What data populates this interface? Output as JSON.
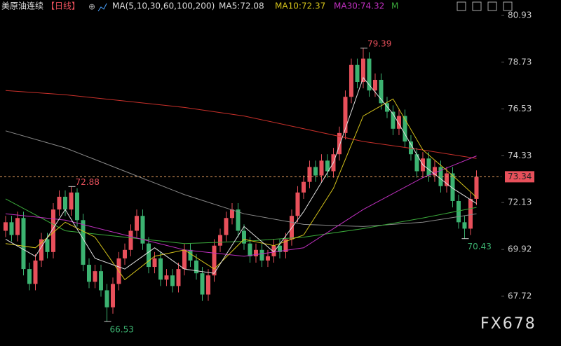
{
  "chart_data": {
    "type": "candlestick",
    "header": [
      "美原油连续",
      "【日线】",
      "MA(5,10,30,60,100,200)",
      "MA5:72.08",
      "MA10:72.37",
      "MA30:74.32",
      "M"
    ],
    "header_colors": [
      "#dddddd",
      "#e8505b",
      "#dddddd",
      "#dddddd",
      "#d4c21a",
      "#c030c0",
      "#3aa83a"
    ],
    "watermark": "FX678",
    "up_color": "#e8505b",
    "down_color": "#3cb371",
    "ylim": [
      66.17,
      81.26
    ],
    "xlim": [
      -0.94,
      83.18
    ],
    "yticks": [
      80.93,
      78.73,
      76.53,
      74.33,
      72.13,
      69.92,
      67.72
    ],
    "last_price": 73.34,
    "high_labels": [
      79.39,
      72.88
    ],
    "low_labels": [
      66.53,
      70.43
    ],
    "open": [
      70.8,
      71.2,
      70.6,
      71.4,
      69.0,
      68.3,
      69.4,
      70.4,
      69.8,
      71.8,
      72.4,
      71.8,
      72.6,
      71.3,
      69.2,
      68.4,
      68.9,
      68.0,
      67.2,
      68.3,
      69.5,
      69.9,
      70.8,
      71.5,
      70.2,
      69.1,
      69.5,
      68.5,
      68.7,
      68.2,
      69.0,
      69.9,
      69.4,
      68.8,
      67.8,
      68.7,
      70.1,
      70.6,
      71.4,
      71.8,
      70.8,
      70.2,
      69.6,
      69.9,
      69.4,
      69.6,
      70.1,
      69.8,
      70.4,
      71.5,
      72.6,
      73.1,
      73.8,
      73.4,
      74.1,
      73.6,
      74.4,
      75.4,
      77.1,
      78.6,
      77.8,
      78.9,
      77.4,
      77.9,
      76.8,
      76.4,
      75.6,
      76.2,
      75.0,
      74.4,
      73.6,
      74.2,
      73.4,
      73.8,
      72.9,
      73.5,
      72.2,
      71.2,
      70.9,
      72.3
    ],
    "high": [
      71.5,
      71.5,
      71.7,
      71.7,
      69.3,
      69.7,
      70.7,
      70.7,
      72.1,
      72.7,
      72.7,
      72.88,
      72.8,
      71.6,
      69.5,
      69.2,
      69.2,
      68.3,
      68.6,
      69.8,
      70.2,
      71.1,
      71.8,
      71.8,
      70.5,
      69.8,
      69.8,
      69.0,
      69.0,
      69.3,
      70.2,
      70.2,
      69.7,
      69.1,
      69.0,
      70.4,
      70.9,
      71.7,
      72.1,
      72.1,
      71.1,
      70.5,
      70.2,
      70.2,
      69.9,
      70.4,
      70.4,
      70.7,
      71.8,
      72.9,
      73.4,
      74.1,
      74.1,
      74.4,
      74.4,
      74.7,
      75.7,
      77.4,
      78.9,
      78.9,
      79.39,
      79.2,
      78.2,
      78.2,
      77.1,
      76.7,
      76.5,
      76.5,
      75.3,
      74.7,
      74.5,
      74.5,
      74.1,
      74.1,
      73.8,
      73.8,
      72.5,
      71.5,
      72.6,
      73.64
    ],
    "low": [
      70.5,
      70.3,
      70.3,
      68.7,
      68.0,
      68.0,
      69.1,
      69.5,
      69.5,
      71.5,
      71.5,
      71.5,
      71.0,
      68.9,
      68.1,
      68.1,
      67.7,
      66.53,
      66.9,
      68.0,
      69.2,
      69.6,
      70.5,
      69.9,
      68.8,
      68.8,
      68.2,
      68.2,
      67.9,
      67.9,
      68.7,
      69.1,
      68.5,
      67.5,
      67.5,
      68.4,
      69.8,
      70.3,
      71.1,
      70.5,
      69.9,
      69.3,
      69.3,
      69.1,
      69.1,
      69.3,
      69.5,
      69.5,
      70.1,
      71.2,
      72.3,
      72.8,
      73.1,
      73.1,
      73.3,
      73.3,
      74.1,
      75.1,
      76.8,
      77.5,
      77.5,
      77.1,
      77.1,
      76.5,
      76.1,
      75.3,
      75.3,
      74.7,
      74.1,
      73.3,
      73.3,
      73.1,
      73.1,
      72.6,
      72.6,
      71.9,
      70.9,
      70.43,
      70.6,
      72.0
    ],
    "close": [
      71.2,
      70.6,
      71.4,
      69.0,
      68.3,
      69.4,
      70.4,
      69.8,
      71.8,
      72.4,
      71.8,
      72.6,
      71.3,
      69.2,
      68.4,
      68.9,
      68.0,
      67.2,
      68.3,
      69.5,
      69.9,
      70.8,
      71.5,
      70.2,
      69.1,
      69.5,
      68.5,
      68.7,
      68.2,
      69.0,
      69.9,
      69.4,
      68.8,
      67.8,
      68.7,
      70.1,
      70.6,
      71.4,
      71.8,
      70.8,
      70.2,
      69.6,
      69.9,
      69.4,
      69.6,
      70.1,
      69.8,
      70.4,
      71.5,
      72.6,
      73.1,
      73.8,
      73.4,
      74.1,
      73.6,
      74.4,
      75.4,
      77.1,
      78.6,
      77.8,
      78.9,
      77.4,
      77.9,
      76.8,
      76.4,
      75.6,
      76.2,
      75.0,
      74.4,
      73.6,
      74.2,
      73.4,
      73.8,
      72.9,
      73.5,
      72.2,
      71.2,
      70.9,
      72.3,
      73.34
    ],
    "series": [
      {
        "color": "#c8302a",
        "x": [
          0,
          10,
          20,
          30,
          40,
          50,
          60,
          70,
          79
        ],
        "values": [
          77.4,
          77.2,
          76.9,
          76.6,
          76.2,
          75.6,
          75.0,
          74.6,
          74.2
        ]
      },
      {
        "color": "#8a8a8a",
        "x": [
          0,
          10,
          20,
          30,
          40,
          50,
          60,
          70,
          79
        ],
        "values": [
          75.5,
          74.7,
          73.6,
          72.5,
          71.6,
          71.1,
          71.0,
          71.2,
          71.6
        ]
      },
      {
        "color": "#3aa83a",
        "x": [
          0,
          10,
          20,
          30,
          40,
          50,
          60,
          70,
          79
        ],
        "values": [
          72.3,
          70.8,
          70.5,
          70.2,
          70.3,
          70.5,
          70.9,
          71.4,
          71.9
        ]
      },
      {
        "color": "#c030c0",
        "x": [
          0,
          10,
          20,
          30,
          40,
          50,
          60,
          70,
          79
        ],
        "values": [
          71.6,
          71.3,
          70.6,
          69.9,
          69.6,
          70.0,
          71.8,
          73.3,
          74.32
        ]
      },
      {
        "color": "#d4c21a",
        "x": [
          0,
          5,
          10,
          15,
          20,
          25,
          30,
          35,
          40,
          45,
          50,
          55,
          60,
          65,
          70,
          75,
          79
        ],
        "values": [
          70.2,
          70.0,
          71.2,
          70.5,
          68.5,
          69.6,
          69.9,
          69.0,
          70.4,
          70.1,
          70.6,
          72.8,
          76.2,
          77.0,
          74.6,
          73.4,
          72.37
        ]
      },
      {
        "color": "#e0e0e0",
        "x": [
          0,
          5,
          10,
          15,
          20,
          25,
          30,
          35,
          40,
          45,
          50,
          55,
          60,
          65,
          70,
          75,
          79
        ],
        "values": [
          70.4,
          69.6,
          71.8,
          69.5,
          69.0,
          70.0,
          69.0,
          68.8,
          71.0,
          69.8,
          71.7,
          74.0,
          78.0,
          76.3,
          73.9,
          72.8,
          72.08
        ]
      }
    ]
  }
}
